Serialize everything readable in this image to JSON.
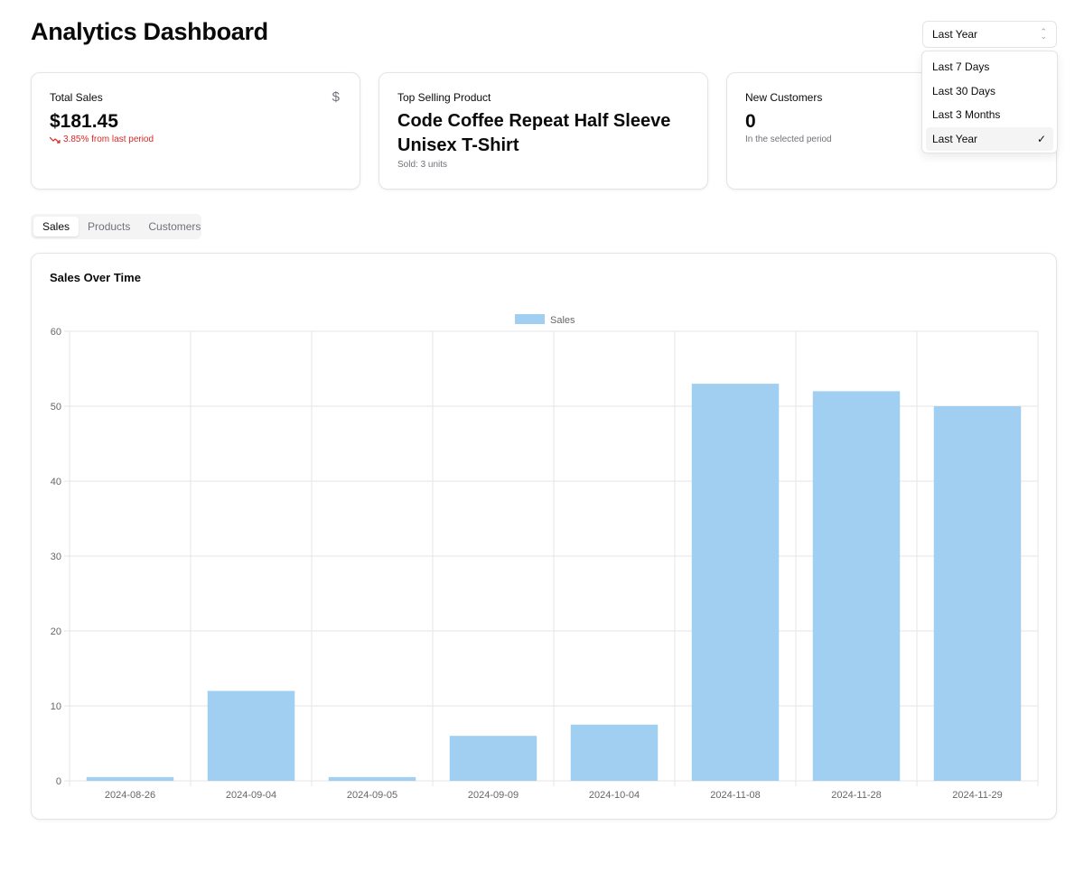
{
  "header": {
    "title": "Analytics Dashboard"
  },
  "range_select": {
    "value": "Last Year",
    "options": [
      "Last 7 Days",
      "Last 30 Days",
      "Last 3 Months",
      "Last Year"
    ],
    "selected_index": 3
  },
  "cards": {
    "total_sales": {
      "label": "Total Sales",
      "value": "$181.45",
      "trend": "3.85% from last period",
      "icon": "dollar-icon"
    },
    "top_product": {
      "label": "Top Selling Product",
      "value": "Code Coffee Repeat Half Sleeve Unisex T-Shirt",
      "sub": "Sold: 3 units"
    },
    "new_customers": {
      "label": "New Customers",
      "value": "0",
      "sub": "In the selected period"
    }
  },
  "tabs": [
    "Sales",
    "Products",
    "Customers"
  ],
  "active_tab": 0,
  "chart": {
    "title": "Sales Over Time"
  },
  "colors": {
    "bar": "#a0cff2",
    "trend_down": "#dc2626",
    "grid": "#e5e5e5"
  },
  "chart_data": {
    "type": "bar",
    "categories": [
      "2024-08-26",
      "2024-09-04",
      "2024-09-05",
      "2024-09-09",
      "2024-10-04",
      "2024-11-08",
      "2024-11-28",
      "2024-11-29"
    ],
    "series": [
      {
        "name": "Sales",
        "values": [
          0.5,
          12,
          0.5,
          6,
          7.5,
          53,
          52,
          50
        ]
      }
    ],
    "ylim": [
      0,
      60
    ],
    "yticks": [
      0,
      10,
      20,
      30,
      40,
      50,
      60
    ],
    "grid": true,
    "legend": "top-center"
  }
}
